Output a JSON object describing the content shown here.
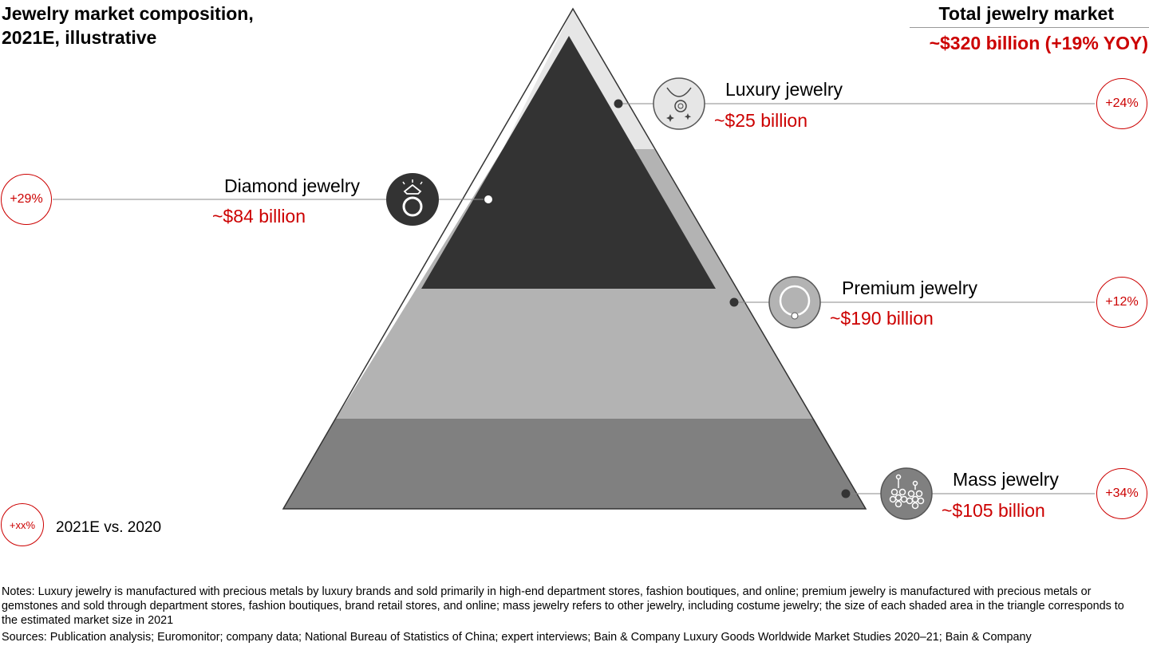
{
  "header": {
    "title_line1": "Jewelry market composition,",
    "title_line2": "2021E, illustrative",
    "total_title": "Total jewelry market",
    "total_value": "~$320 billion (+19% YOY)"
  },
  "segments": {
    "luxury": {
      "label": "Luxury jewelry",
      "value": "~$25 billion",
      "growth": "+24%",
      "icon": "necklace-icon"
    },
    "diamond": {
      "label": "Diamond jewelry",
      "value": "~$84 billion",
      "growth": "+29%",
      "icon": "diamond-ring-icon"
    },
    "premium": {
      "label": "Premium jewelry",
      "value": "~$190 billion",
      "growth": "+12%",
      "icon": "bangle-icon"
    },
    "mass": {
      "label": "Mass jewelry",
      "value": "~$105 billion",
      "growth": "+34%",
      "icon": "earrings-icon"
    }
  },
  "colors": {
    "luxury_band": "#e6e6e6",
    "diamond_triangle": "#333333",
    "premium_band": "#b3b3b3",
    "mass_band": "#808080",
    "accent": "#cc0000"
  },
  "legend": {
    "badge": "+xx%",
    "text": "2021E vs. 2020"
  },
  "footer": {
    "notes": "Notes: Luxury jewelry is manufactured with precious metals by luxury brands and sold primarily in high-end department stores, fashion boutiques, and online; premium jewelry is manufactured with precious metals or gemstones and sold through department stores, fashion boutiques, brand retail stores, and online; mass jewelry refers to other jewelry, including costume jewelry; the size of each shaded area in the triangle corresponds to the estimated market size in 2021",
    "sources": "Sources: Publication analysis; Euromonitor; company data; National Bureau of Statistics of China; expert interviews; Bain & Company Luxury Goods Worldwide Market Studies 2020–21; Bain & Company"
  }
}
